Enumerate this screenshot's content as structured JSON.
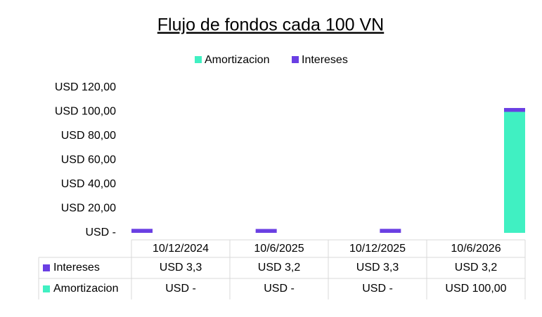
{
  "chart_data": {
    "type": "stacked_bar",
    "title": "Flujo de fondos cada 100 VN",
    "categories": [
      "10/12/2024",
      "10/6/2025",
      "10/12/2025",
      "10/6/2026"
    ],
    "series": [
      {
        "name": "Amortizacion",
        "color": "#40f0c2",
        "values": [
          0,
          0,
          0,
          100
        ],
        "value_labels": [
          "USD -",
          "USD -",
          "USD -",
          "USD 100,00"
        ]
      },
      {
        "name": "Intereses",
        "color": "#6a3fe3",
        "values": [
          3.3,
          3.2,
          3.3,
          3.2
        ],
        "value_labels": [
          "USD 3,3",
          "USD 3,2",
          "USD 3,3",
          "USD 3,2"
        ]
      }
    ],
    "ylim": [
      0,
      120
    ],
    "yticks": [
      {
        "value": 0,
        "label": "USD -"
      },
      {
        "value": 20,
        "label": "USD 20,00"
      },
      {
        "value": 40,
        "label": "USD 40,00"
      },
      {
        "value": 60,
        "label": "USD 60,00"
      },
      {
        "value": 80,
        "label": "USD 80,00"
      },
      {
        "value": 100,
        "label": "USD 100,00"
      },
      {
        "value": 120,
        "label": "USD 120,00"
      }
    ],
    "grid": false,
    "legend": "top"
  }
}
